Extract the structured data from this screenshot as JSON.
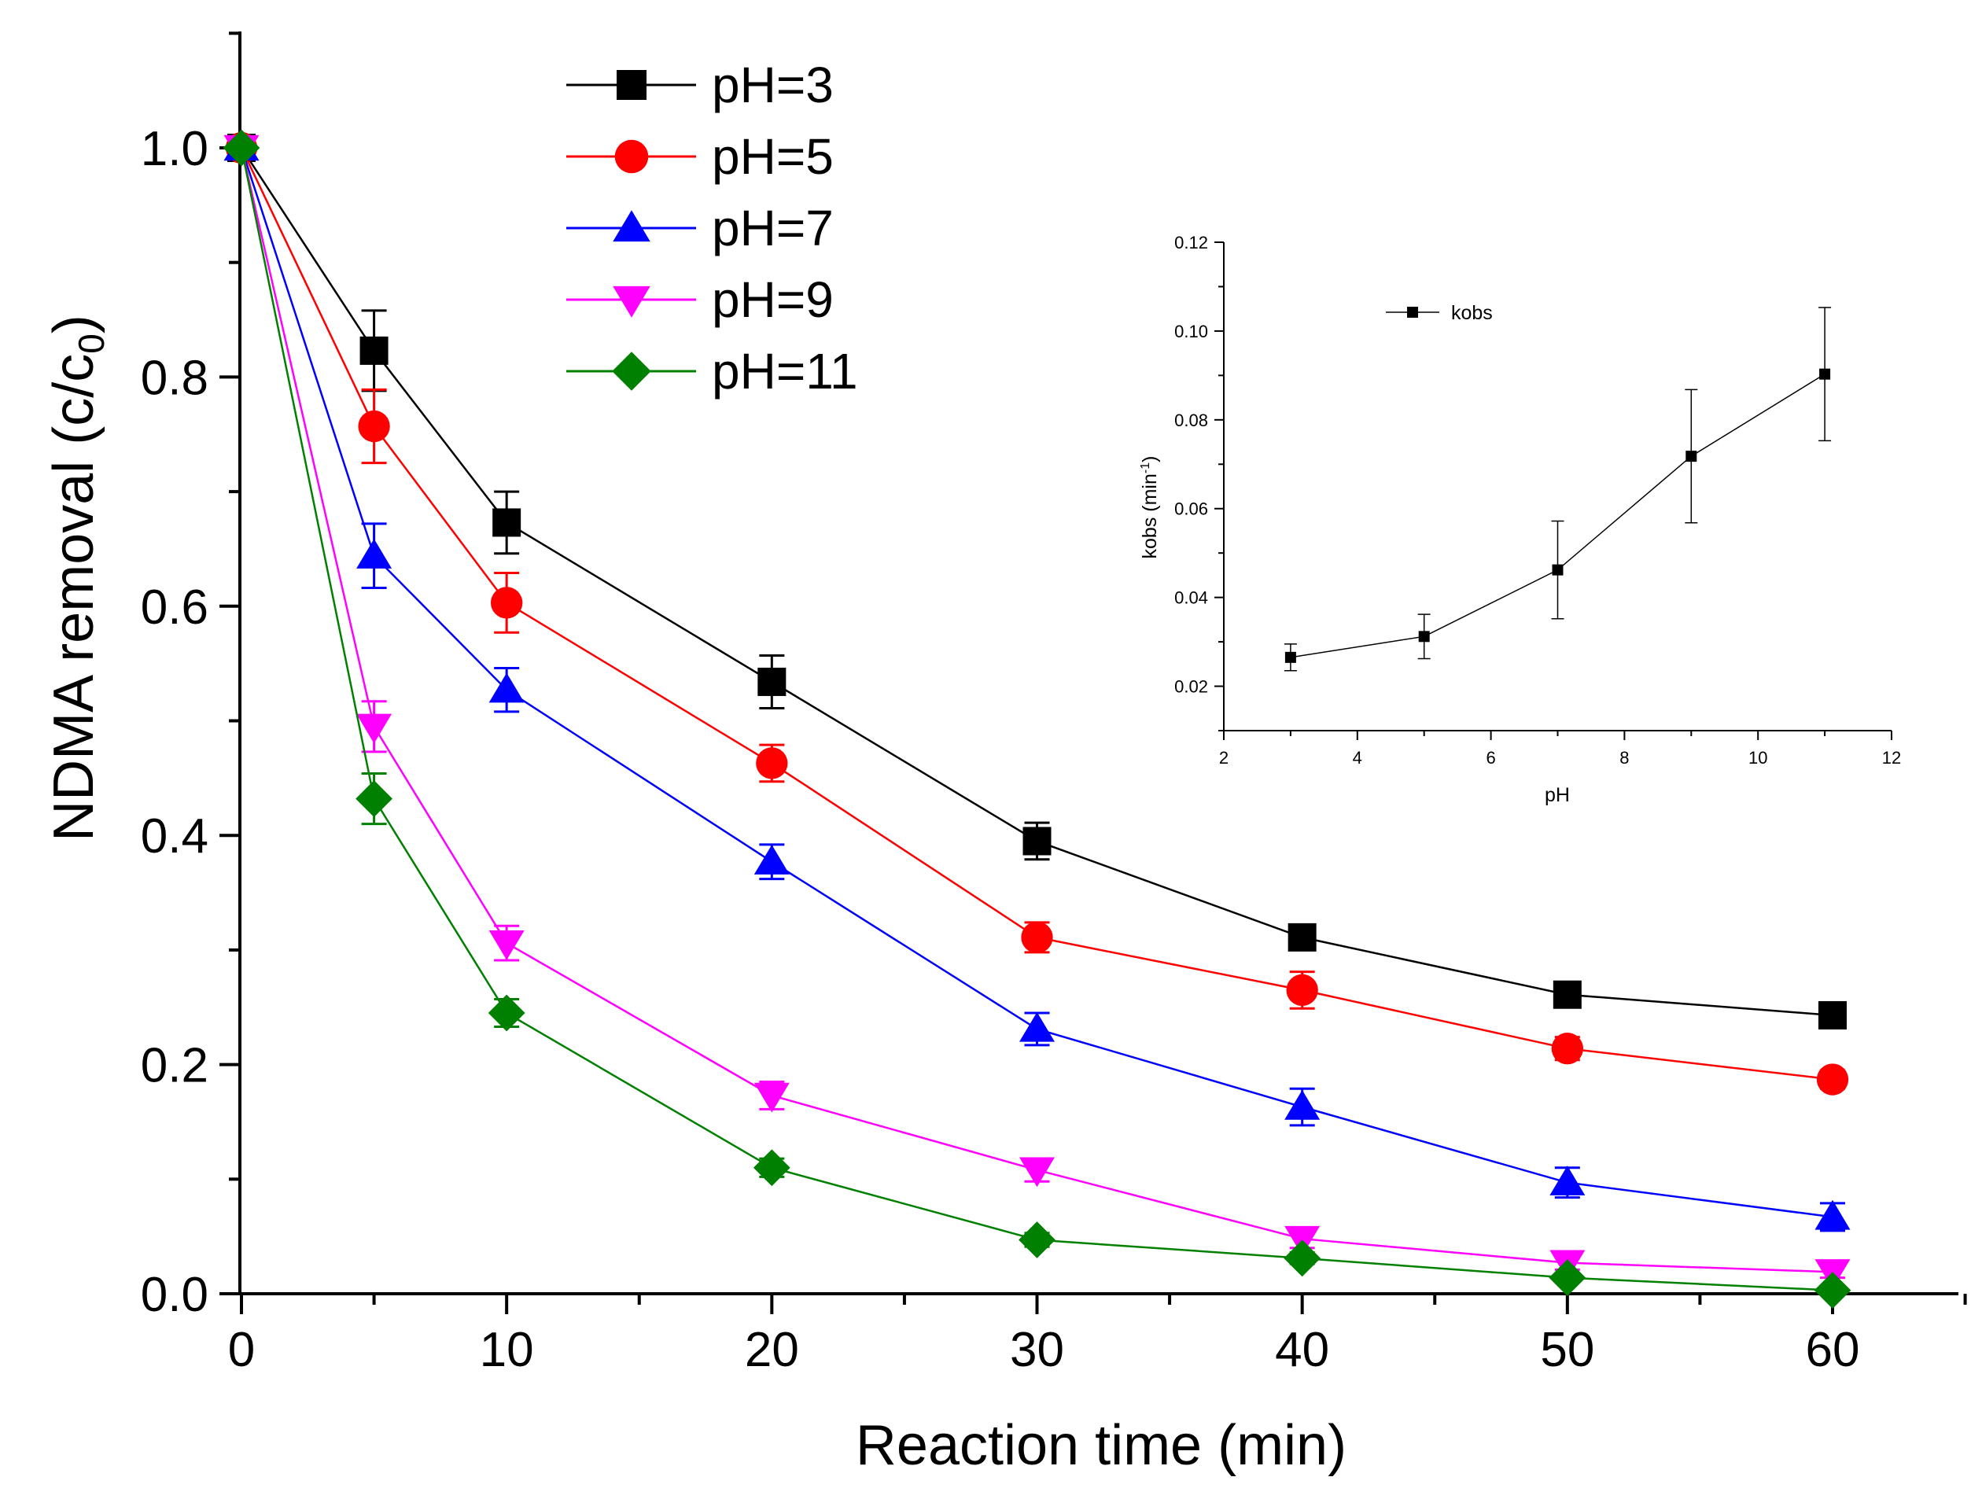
{
  "chart_data": [
    {
      "type": "line",
      "title": "",
      "xlabel": "Reaction time (min)",
      "ylabel_main": "NDMA removal (c/c",
      "ylabel_sub": "0",
      "ylabel_close": ")",
      "xlim": [
        0,
        65
      ],
      "ylim": [
        0,
        1.1
      ],
      "xticks": [
        0,
        10,
        20,
        30,
        40,
        50,
        60
      ],
      "xtick_labels": [
        "0",
        "10",
        "20",
        "30",
        "40",
        "50",
        "60"
      ],
      "yticks": [
        0.0,
        0.2,
        0.4,
        0.6,
        0.8,
        1.0
      ],
      "ytick_labels": [
        "0.0",
        "0.2",
        "0.4",
        "0.6",
        "0.8",
        "1.0"
      ],
      "legend_position": "top-left",
      "x": [
        0,
        5,
        10,
        20,
        30,
        40,
        50,
        60
      ],
      "series": [
        {
          "name": "pH=3",
          "color": "#000000",
          "marker": "square",
          "values": [
            1.0,
            0.823,
            0.673,
            0.534,
            0.395,
            0.311,
            0.261,
            0.243
          ],
          "errors": [
            0,
            0.035,
            0.027,
            0.023,
            0.016,
            0.01,
            0.01,
            0.008
          ]
        },
        {
          "name": "pH=5",
          "color": "#ff0000",
          "marker": "circle",
          "values": [
            1.0,
            0.757,
            0.603,
            0.463,
            0.311,
            0.265,
            0.214,
            0.187
          ],
          "errors": [
            0,
            0.032,
            0.026,
            0.016,
            0.013,
            0.016,
            0.01,
            0.008
          ]
        },
        {
          "name": "pH=7",
          "color": "#0000ff",
          "marker": "triangle-up",
          "values": [
            1.0,
            0.644,
            0.527,
            0.377,
            0.231,
            0.163,
            0.097,
            0.067
          ],
          "errors": [
            0,
            0.028,
            0.019,
            0.015,
            0.014,
            0.016,
            0.013,
            0.012
          ]
        },
        {
          "name": "pH=9",
          "color": "#ff00ff",
          "marker": "triangle-down",
          "values": [
            1.0,
            0.495,
            0.306,
            0.173,
            0.108,
            0.048,
            0.027,
            0.019
          ],
          "errors": [
            0,
            0.022,
            0.015,
            0.012,
            0.01,
            0.008,
            0.006,
            0.005
          ]
        },
        {
          "name": "pH=11",
          "color": "#008000",
          "marker": "diamond",
          "values": [
            1.0,
            0.432,
            0.245,
            0.11,
            0.047,
            0.031,
            0.014,
            0.003
          ],
          "errors": [
            0,
            0.022,
            0.012,
            0.008,
            0.006,
            0.005,
            0.004,
            0.003
          ]
        }
      ]
    },
    {
      "type": "line",
      "title": "",
      "xlabel": "pH",
      "ylabel_main": "kobs (min",
      "ylabel_sup": "-1",
      "ylabel_close": ")",
      "xlim": [
        2,
        12
      ],
      "ylim": [
        0.01,
        0.12
      ],
      "xticks": [
        2,
        4,
        6,
        8,
        10,
        12
      ],
      "xtick_labels": [
        "2",
        "4",
        "6",
        "8",
        "10",
        "12"
      ],
      "yticks": [
        0.02,
        0.04,
        0.06,
        0.08,
        0.1,
        0.12
      ],
      "ytick_labels": [
        "0.02",
        "0.04",
        "0.06",
        "0.08",
        "0.10",
        "0.12"
      ],
      "legend_position": "top-left",
      "series": [
        {
          "name": "kobs",
          "color": "#000000",
          "marker": "square",
          "x": [
            3,
            5,
            7,
            9,
            11
          ],
          "values": [
            0.0265,
            0.0312,
            0.0462,
            0.0718,
            0.0903
          ],
          "errors": [
            0.003,
            0.005,
            0.011,
            0.015,
            0.015
          ]
        }
      ]
    }
  ]
}
